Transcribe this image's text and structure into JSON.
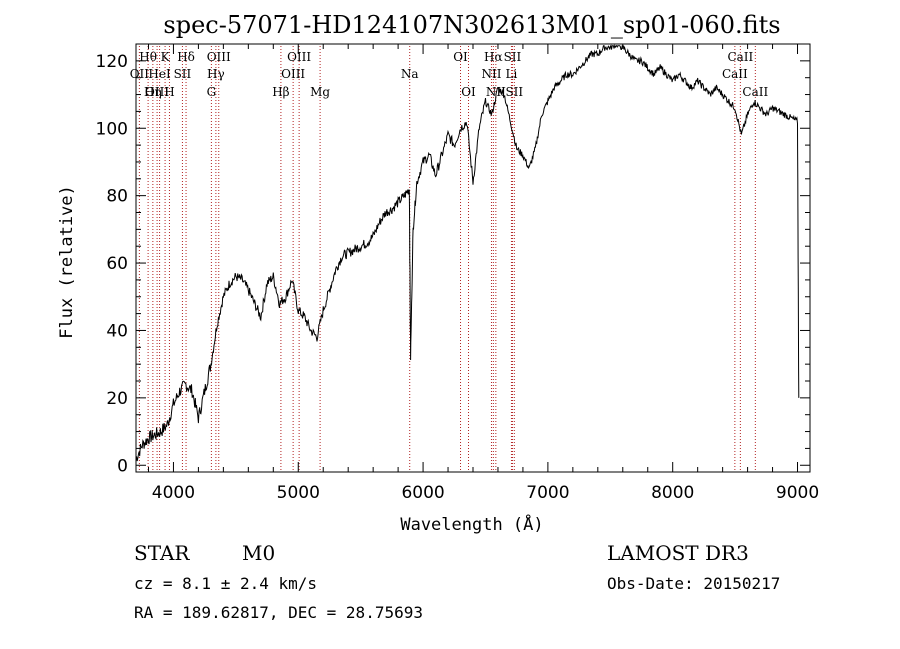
{
  "chart_data": {
    "type": "line",
    "title": "spec-57071-HD124107N302613M01_sp01-060.fits",
    "xlabel": "Wavelength (Å)",
    "ylabel": "Flux (relative)",
    "xlim": [
      3700,
      9100
    ],
    "ylim": [
      -2,
      125
    ],
    "xticks": [
      4000,
      5000,
      6000,
      7000,
      8000,
      9000
    ],
    "yticks": [
      0,
      20,
      40,
      60,
      80,
      100,
      120
    ],
    "grid": false,
    "series": [
      {
        "x": [
          3700,
          3750,
          3800,
          3850,
          3900,
          3950,
          4000,
          4050,
          4100,
          4150,
          4200,
          4250,
          4300,
          4350,
          4400,
          4450,
          4500,
          4550,
          4600,
          4650,
          4700,
          4750,
          4800,
          4850,
          4900,
          4950,
          5000,
          5050,
          5100,
          5150,
          5200,
          5250,
          5300,
          5350,
          5400,
          5450,
          5500,
          5550,
          5600,
          5650,
          5700,
          5750,
          5800,
          5850,
          5890,
          5900,
          5920,
          5950,
          6000,
          6050,
          6100,
          6150,
          6200,
          6250,
          6300,
          6350,
          6400,
          6450,
          6500,
          6550,
          6600,
          6650,
          6700,
          6750,
          6800,
          6850,
          6900,
          6950,
          7000,
          7050,
          7100,
          7150,
          7200,
          7250,
          7300,
          7350,
          7400,
          7450,
          7500,
          7550,
          7600,
          7650,
          7700,
          7750,
          7800,
          7850,
          7900,
          7950,
          8000,
          8050,
          8100,
          8150,
          8200,
          8250,
          8300,
          8350,
          8400,
          8450,
          8500,
          8550,
          8600,
          8650,
          8700,
          8750,
          8800,
          8850,
          8900,
          8950,
          9000,
          9010
        ],
        "y": [
          2,
          6,
          8,
          9,
          10,
          12,
          18,
          22,
          24,
          22,
          14,
          22,
          30,
          42,
          50,
          54,
          56,
          55,
          52,
          48,
          44,
          54,
          56,
          48,
          50,
          55,
          46,
          44,
          40,
          38,
          46,
          52,
          58,
          62,
          63,
          64,
          65,
          66,
          68,
          72,
          75,
          76,
          78,
          80,
          82,
          32,
          70,
          84,
          90,
          92,
          86,
          92,
          98,
          95,
          100,
          102,
          84,
          100,
          108,
          104,
          112,
          110,
          102,
          94,
          92,
          88,
          94,
          104,
          108,
          112,
          114,
          116,
          116,
          118,
          120,
          122,
          122,
          124,
          124,
          125,
          124,
          122,
          120,
          120,
          118,
          116,
          118,
          116,
          114,
          116,
          114,
          112,
          114,
          112,
          110,
          112,
          110,
          108,
          106,
          98,
          104,
          108,
          106,
          104,
          106,
          105,
          104,
          103,
          102,
          20
        ]
      }
    ],
    "lines": [
      {
        "label": "Hθ",
        "row": 1,
        "x": 3797
      },
      {
        "label": "K",
        "row": 1,
        "x": 3933
      },
      {
        "label": "Hδ",
        "row": 1,
        "x": 4101
      },
      {
        "label": "OIII",
        "row": 1,
        "x": 4363
      },
      {
        "label": "OIII",
        "row": 1,
        "x": 5007
      },
      {
        "label": "OI",
        "row": 1,
        "x": 6300
      },
      {
        "label": "Hα",
        "row": 1,
        "x": 6563
      },
      {
        "label": "SII",
        "row": 1,
        "x": 6716
      },
      {
        "label": "CaII",
        "row": 1,
        "x": 8542
      },
      {
        "label": "OII",
        "row": 2,
        "x": 3727
      },
      {
        "label": "HeI",
        "row": 2,
        "x": 3889
      },
      {
        "label": "SII",
        "row": 2,
        "x": 4072
      },
      {
        "label": "Hγ",
        "row": 2,
        "x": 4340
      },
      {
        "label": "OIII",
        "row": 2,
        "x": 4959
      },
      {
        "label": "Na",
        "row": 2,
        "x": 5893
      },
      {
        "label": "NII",
        "row": 2,
        "x": 6548
      },
      {
        "label": "Li",
        "row": 2,
        "x": 6708
      },
      {
        "label": "CaII",
        "row": 2,
        "x": 8498
      },
      {
        "label": "OIII",
        "row": 3,
        "x": 3869
      },
      {
        "label": "Hη",
        "row": 3,
        "x": 3835
      },
      {
        "label": "H",
        "row": 3,
        "x": 3968
      },
      {
        "label": "G",
        "row": 3,
        "x": 4304
      },
      {
        "label": "Hβ",
        "row": 3,
        "x": 4861
      },
      {
        "label": "Mg",
        "row": 3,
        "x": 5175
      },
      {
        "label": "OI",
        "row": 3,
        "x": 6364
      },
      {
        "label": "NII",
        "row": 3,
        "x": 6583
      },
      {
        "label": "SII",
        "row": 3,
        "x": 6731
      },
      {
        "label": "CaII",
        "row": 3,
        "x": 8662
      }
    ]
  },
  "info": {
    "class": "STAR",
    "subclass": "M0",
    "cz": "cz = 8.1 ± 2.4 km/s",
    "radec": "RA = 189.62817, DEC =  28.75693",
    "survey": "LAMOST DR3",
    "obsdate": "Obs-Date: 20150217"
  },
  "colors": {
    "line_marker": "#b22222",
    "spectrum": "#000000"
  }
}
